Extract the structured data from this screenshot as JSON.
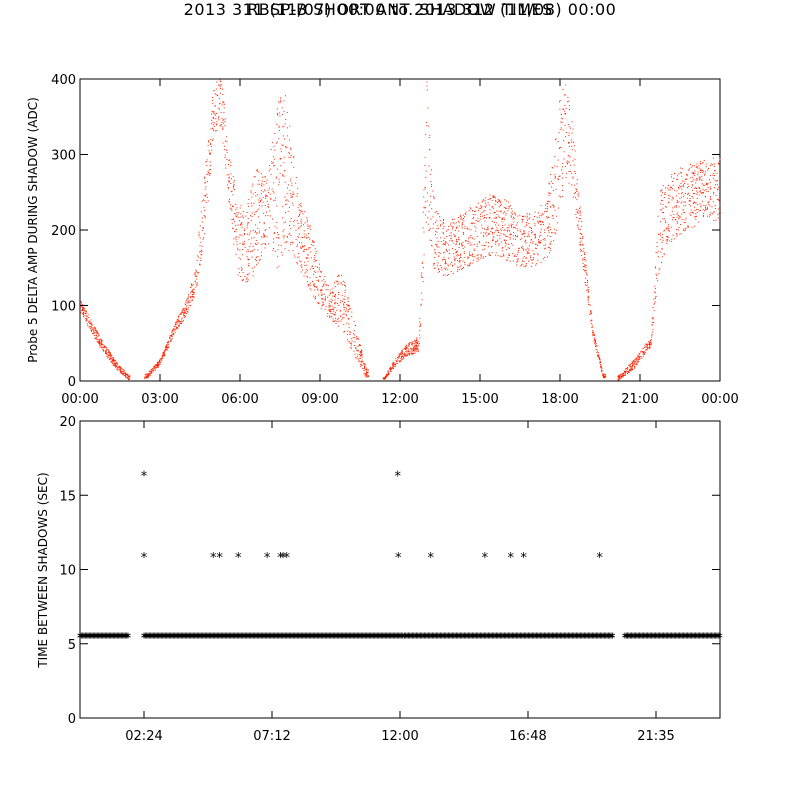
{
  "title": "RBSP-B SHORT ANT. SHADOW TIMES",
  "subtitle": "2013 311 (11/07) 00:00 to 2013 312 (11/08) 00:00",
  "chart_data": [
    {
      "type": "scatter",
      "marker_color": "#ff2200",
      "ylabel": "Probe 5 DELTA AMP DURING SHADOW (ADC)",
      "xlabel": "",
      "x_unit": "hours",
      "xlim": [
        0,
        24
      ],
      "ylim": [
        0,
        400
      ],
      "xticks": [
        0,
        3,
        6,
        9,
        12,
        15,
        18,
        21,
        24
      ],
      "xtick_labels": [
        "00:00",
        "03:00",
        "06:00",
        "09:00",
        "12:00",
        "15:00",
        "18:00",
        "21:00",
        "00:00"
      ],
      "yticks": [
        0,
        100,
        200,
        300,
        400
      ],
      "ytick_labels": [
        "0",
        "100",
        "200",
        "300",
        "400"
      ],
      "envelope": {
        "x": [
          0,
          0.3,
          0.8,
          1.3,
          1.8,
          2.5,
          3.0,
          3.6,
          3.9,
          4.3,
          4.7,
          5.0,
          5.3,
          5.6,
          5.9,
          6.2,
          6.6,
          7.0,
          7.4,
          7.6,
          7.9,
          8.2,
          8.6,
          9.0,
          9.4,
          9.8,
          10.2,
          10.7,
          11.4,
          11.8,
          12.2,
          12.7,
          13.0,
          13.2,
          13.5,
          13.9,
          14.5,
          15.0,
          15.5,
          16.0,
          16.5,
          17.0,
          17.5,
          17.9,
          18.2,
          18.5,
          18.8,
          19.2,
          19.6,
          20.2,
          20.8,
          21.2,
          21.4,
          21.7,
          22.0,
          22.5,
          23.0,
          23.5,
          24.0
        ],
        "low": [
          92,
          72,
          42,
          18,
          2,
          4,
          22,
          68,
          82,
          112,
          200,
          330,
          330,
          220,
          140,
          128,
          145,
          170,
          148,
          165,
          175,
          150,
          120,
          95,
          80,
          70,
          40,
          5,
          2,
          20,
          32,
          40,
          220,
          150,
          140,
          140,
          152,
          160,
          168,
          160,
          150,
          152,
          162,
          200,
          270,
          240,
          160,
          60,
          5,
          2,
          18,
          38,
          45,
          140,
          180,
          195,
          205,
          215,
          210
        ],
        "high": [
          108,
          88,
          55,
          28,
          8,
          10,
          30,
          82,
          100,
          145,
          290,
          400,
          400,
          310,
          240,
          225,
          285,
          270,
          370,
          400,
          330,
          245,
          210,
          150,
          125,
          150,
          90,
          20,
          5,
          30,
          48,
          60,
          400,
          260,
          215,
          215,
          228,
          240,
          250,
          240,
          220,
          228,
          240,
          370,
          400,
          330,
          210,
          75,
          10,
          8,
          30,
          50,
          55,
          250,
          270,
          285,
          290,
          295,
          300
        ]
      }
    },
    {
      "type": "scatter",
      "marker": "*",
      "marker_color": "#000000",
      "ylabel": "TIME BETWEEN SHADOWS (SEC)",
      "xlabel": "",
      "x_unit": "minutes",
      "xlim": [
        0,
        1440
      ],
      "ylim": [
        0,
        20
      ],
      "xticks": [
        144,
        432,
        720,
        1008,
        1296
      ],
      "xtick_labels": [
        "02:24",
        "07:12",
        "12:00",
        "16:48",
        "21:35"
      ],
      "yticks": [
        0,
        5,
        10,
        15,
        20
      ],
      "ytick_labels": [
        "0",
        "5",
        "10",
        "15",
        "20"
      ],
      "baseline_value": 5.5,
      "baseline_segments": [
        [
          0,
          108
        ],
        [
          144,
          728
        ],
        [
          730,
          1198
        ],
        [
          1226,
          1440
        ]
      ],
      "points": [
        [
          144,
          16.4
        ],
        [
          144,
          10.9
        ],
        [
          300,
          10.9
        ],
        [
          314,
          10.9
        ],
        [
          356,
          10.9
        ],
        [
          421,
          10.9
        ],
        [
          451,
          10.9
        ],
        [
          457,
          10.9
        ],
        [
          465,
          10.9
        ],
        [
          715,
          16.4
        ],
        [
          716,
          10.9
        ],
        [
          789,
          10.9
        ],
        [
          911,
          10.9
        ],
        [
          969,
          10.9
        ],
        [
          998,
          10.9
        ],
        [
          1169,
          10.9
        ]
      ]
    }
  ]
}
